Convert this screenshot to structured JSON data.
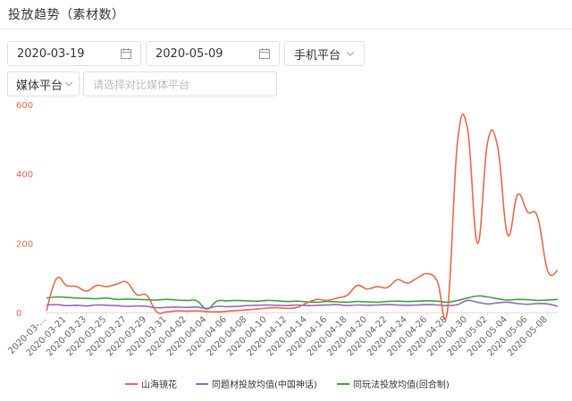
{
  "header": {
    "title": "投放趋势（素材数）"
  },
  "filters": {
    "start_date": "2020-03-19",
    "end_date": "2020-05-09",
    "platform": "手机平台",
    "media": "媒体平台",
    "compare_placeholder": "请选择对比媒体平台"
  },
  "chart_data": {
    "type": "line",
    "x": [
      "2020-03-19",
      "2020-03-20",
      "2020-03-21",
      "2020-03-22",
      "2020-03-23",
      "2020-03-24",
      "2020-03-25",
      "2020-03-26",
      "2020-03-27",
      "2020-03-28",
      "2020-03-29",
      "2020-03-30",
      "2020-03-31",
      "2020-04-01",
      "2020-04-02",
      "2020-04-03",
      "2020-04-04",
      "2020-04-05",
      "2020-04-06",
      "2020-04-07",
      "2020-04-08",
      "2020-04-09",
      "2020-04-10",
      "2020-04-11",
      "2020-04-12",
      "2020-04-13",
      "2020-04-14",
      "2020-04-15",
      "2020-04-16",
      "2020-04-17",
      "2020-04-18",
      "2020-04-19",
      "2020-04-20",
      "2020-04-21",
      "2020-04-22",
      "2020-04-23",
      "2020-04-24",
      "2020-04-25",
      "2020-04-26",
      "2020-04-27",
      "2020-04-28",
      "2020-04-29",
      "2020-04-30",
      "2020-05-01",
      "2020-05-02",
      "2020-05-03",
      "2020-05-04",
      "2020-05-05",
      "2020-05-06",
      "2020-05-07",
      "2020-05-08",
      "2020-05-09"
    ],
    "x_tick_labels": [
      "2020-03-...",
      "2020-03-21",
      "2020-03-23",
      "2020-03-25",
      "2020-03-27",
      "2020-03-29",
      "2020-03-31",
      "2020-04-02",
      "2020-04-04",
      "2020-04-06",
      "2020-04-08",
      "2020-04-10",
      "2020-04-12",
      "2020-04-14",
      "2020-04-16",
      "2020-04-18",
      "2020-04-20",
      "2020-04-22",
      "2020-04-24",
      "2020-04-26",
      "2020-04-28",
      "2020-04-30",
      "2020-05-02",
      "2020-05-04",
      "2020-05-06",
      "2020-05-08"
    ],
    "y_ticks": [
      "0",
      "200",
      "400",
      "600"
    ],
    "ylim": [
      0,
      600
    ],
    "grid": false,
    "legend_position": "bottom",
    "series": [
      {
        "name": "山海镜花",
        "color": "#e8684a",
        "values": [
          5,
          98,
          78,
          75,
          62,
          78,
          75,
          82,
          88,
          52,
          50,
          2,
          2,
          5,
          4,
          5,
          3,
          2,
          4,
          6,
          8,
          10,
          13,
          14,
          12,
          15,
          28,
          38,
          35,
          42,
          50,
          78,
          68,
          75,
          72,
          95,
          85,
          100,
          112,
          90,
          5,
          490,
          530,
          200,
          490,
          480,
          225,
          340,
          290,
          275,
          120,
          122
        ]
      },
      {
        "name": "同题材投放均值(中国神话)",
        "color": "#9467bd",
        "values": [
          22,
          23,
          20,
          21,
          19,
          22,
          21,
          20,
          18,
          19,
          18,
          14,
          15,
          16,
          15,
          16,
          12,
          18,
          17,
          18,
          20,
          21,
          22,
          21,
          20,
          22,
          20,
          21,
          22,
          23,
          20,
          22,
          21,
          22,
          23,
          22,
          21,
          22,
          23,
          22,
          20,
          23,
          35,
          30,
          25,
          28,
          30,
          26,
          24,
          26,
          25,
          18
        ]
      },
      {
        "name": "同玩法投放均值(回合制)",
        "color": "#3ca33c",
        "values": [
          42,
          45,
          44,
          42,
          41,
          40,
          42,
          38,
          39,
          38,
          37,
          36,
          38,
          36,
          35,
          34,
          10,
          33,
          34,
          35,
          34,
          33,
          35,
          34,
          32,
          33,
          31,
          30,
          32,
          31,
          30,
          32,
          31,
          30,
          32,
          33,
          32,
          33,
          34,
          33,
          30,
          35,
          42,
          48,
          45,
          40,
          36,
          38,
          37,
          35,
          36,
          38
        ]
      }
    ]
  }
}
